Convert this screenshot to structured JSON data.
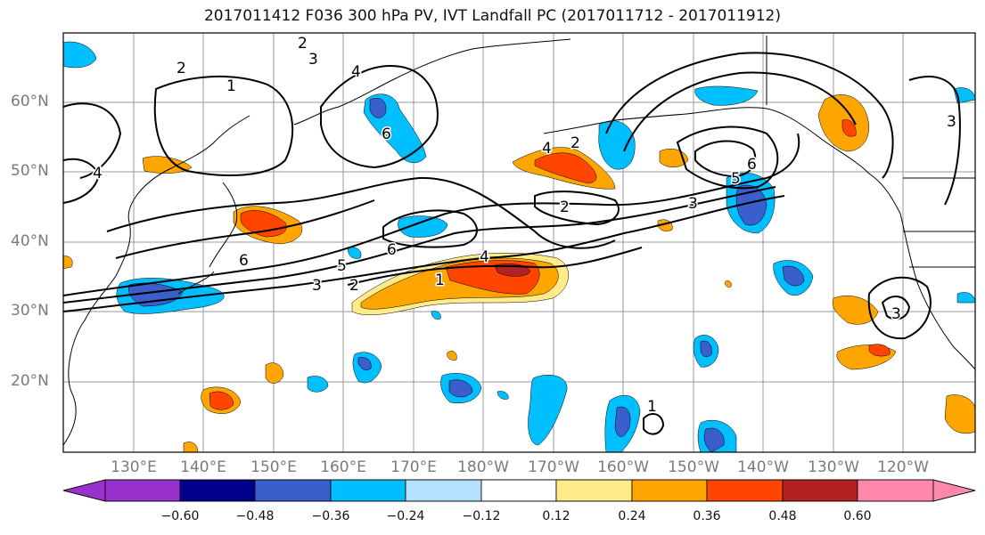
{
  "title": "2017011412 F036 300 hPa PV, IVT Landfall PC (2017011712 - 2017011912)",
  "lat_labels": [
    "60°N",
    "50°N",
    "40°N",
    "30°N",
    "20°N"
  ],
  "lon_labels": [
    "130°E",
    "140°E",
    "150°E",
    "160°E",
    "170°E",
    "180°W",
    "170°W",
    "160°W",
    "150°W",
    "140°W",
    "130°W",
    "120°W"
  ],
  "colorbar": {
    "colors": [
      "#9932cc",
      "#00008b",
      "#3a5fcd",
      "#00bfff",
      "#b2e2ff",
      "#ffffff",
      "#ffeb8a",
      "#ffa500",
      "#ff4500",
      "#b22222",
      "#ff88aa"
    ],
    "tick_labels": [
      "−0.60",
      "−0.48",
      "−0.36",
      "−0.24",
      "−0.12",
      "0.12",
      "0.24",
      "0.36",
      "0.48",
      "0.60"
    ]
  },
  "contour_labels": [
    "2",
    "3",
    "4",
    "1",
    "2",
    "4",
    "6",
    "6",
    "4",
    "2",
    "3",
    "6",
    "5",
    "6",
    "5",
    "3",
    "2",
    "4",
    "1",
    "2",
    "3",
    "3",
    "1"
  ]
}
